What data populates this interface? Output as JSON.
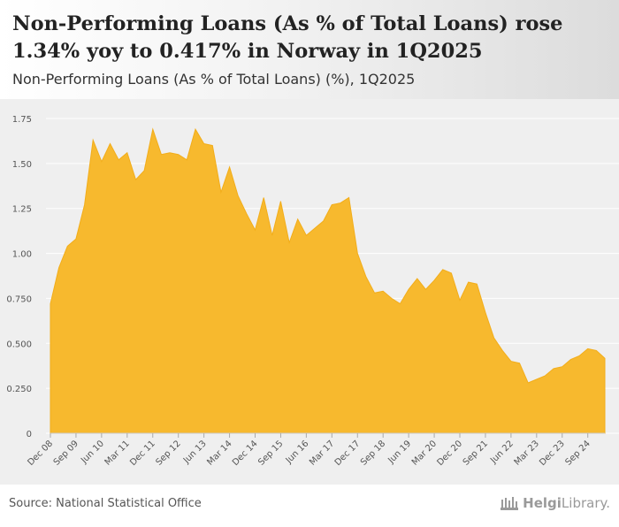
{
  "header": {
    "title": "Non-Performing Loans (As % of Total Loans) rose 1.34% yoy to 0.417% in Norway in 1Q2025",
    "subtitle": "Non-Performing Loans (As % of Total Loans) (%), 1Q2025"
  },
  "footer": {
    "source": "Source: National Statistical Office",
    "logo_text_bold": "Helgi",
    "logo_text_rest": "Library."
  },
  "colors": {
    "area_fill": "#f7b92e",
    "area_stroke": "#f2ad1a",
    "grid": "#ffffff",
    "tick_text": "#555555"
  },
  "chart_data": {
    "type": "area",
    "title": "Non-Performing Loans (As % of Total Loans) (%), 1Q2025",
    "xlabel": "",
    "ylabel": "",
    "ylim": [
      0,
      1.75
    ],
    "yticks": [
      "0",
      "0.250",
      "0.500",
      "0.750",
      "1.00",
      "1.25",
      "1.50",
      "1.75"
    ],
    "ytick_values": [
      0,
      0.25,
      0.5,
      0.75,
      1.0,
      1.25,
      1.5,
      1.75
    ],
    "xtick_labels": [
      "Dec 08",
      "Sep 09",
      "Jun 10",
      "Mar 11",
      "Dec 11",
      "Sep 12",
      "Jun 13",
      "Mar 14",
      "Dec 14",
      "Sep 15",
      "Jun 16",
      "Mar 17",
      "Dec 17",
      "Sep 18",
      "Jun 19",
      "Mar 20",
      "Dec 20",
      "Sep 21",
      "Jun 22",
      "Mar 23",
      "Dec 23",
      "Sep 24"
    ],
    "xtick_index": [
      0,
      3,
      6,
      9,
      12,
      15,
      18,
      21,
      24,
      27,
      30,
      33,
      36,
      39,
      42,
      45,
      48,
      51,
      54,
      57,
      60,
      63
    ],
    "first_period": "4Q2008",
    "last_period": "1Q2025",
    "values": [
      0.72,
      0.92,
      1.04,
      1.08,
      1.27,
      1.63,
      1.51,
      1.61,
      1.52,
      1.56,
      1.41,
      1.46,
      1.69,
      1.55,
      1.56,
      1.55,
      1.52,
      1.69,
      1.61,
      1.6,
      1.34,
      1.48,
      1.32,
      1.22,
      1.13,
      1.31,
      1.1,
      1.29,
      1.06,
      1.19,
      1.1,
      1.14,
      1.18,
      1.27,
      1.28,
      1.31,
      1.0,
      0.87,
      0.78,
      0.79,
      0.75,
      0.72,
      0.8,
      0.86,
      0.8,
      0.85,
      0.91,
      0.89,
      0.74,
      0.84,
      0.83,
      0.67,
      0.53,
      0.46,
      0.4,
      0.39,
      0.28,
      0.3,
      0.32,
      0.36,
      0.37,
      0.41,
      0.43,
      0.47,
      0.46,
      0.417
    ]
  }
}
